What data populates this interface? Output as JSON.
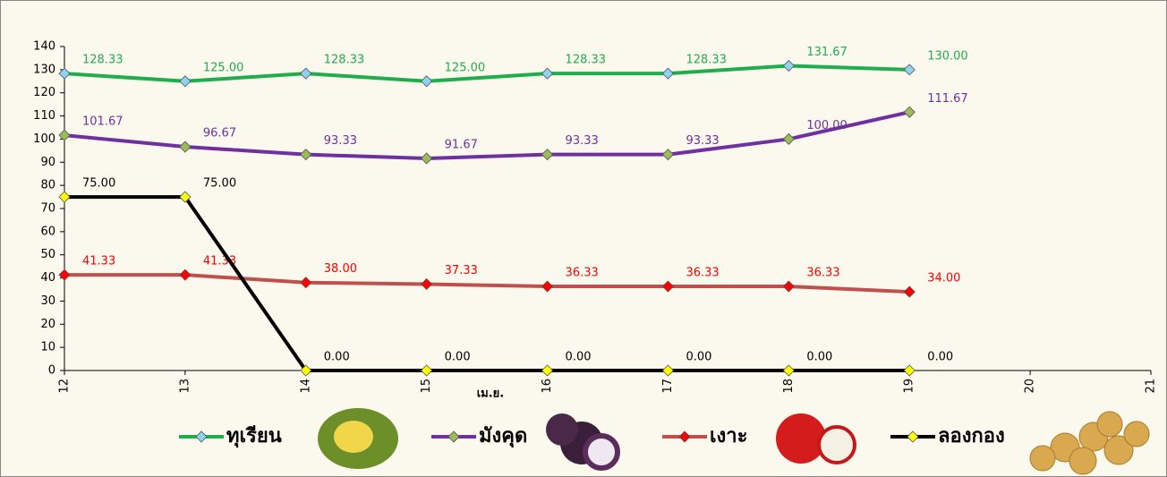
{
  "chart_data": {
    "type": "line",
    "x": [
      12,
      13,
      14,
      15,
      16,
      17,
      18,
      19
    ],
    "xlabel": "เม.ย.",
    "xlim": [
      12,
      21
    ],
    "xticks": [
      12,
      13,
      14,
      15,
      16,
      17,
      18,
      19,
      20,
      21
    ],
    "ylim": [
      0,
      140
    ],
    "yticks": [
      0,
      10,
      20,
      30,
      40,
      50,
      60,
      70,
      80,
      90,
      100,
      110,
      120,
      130,
      140
    ],
    "grid": false,
    "series": [
      {
        "name": "ทุเรียน",
        "color": "#1fae4b",
        "marker_color": "#8fd3f0",
        "label_color": "#1fae4b",
        "values": [
          128.33,
          125.0,
          128.33,
          125.0,
          128.33,
          128.33,
          131.67,
          130.0
        ],
        "value_labels": [
          "128.33",
          "125.00",
          "128.33",
          "125.00",
          "128.33",
          "128.33",
          "131.67",
          "130.00"
        ]
      },
      {
        "name": "มังคุด",
        "color": "#7030a0",
        "marker_color": "#9bbb59",
        "label_color": "#7030a0",
        "values": [
          101.67,
          96.67,
          93.33,
          91.67,
          93.33,
          93.33,
          100.0,
          111.67
        ],
        "value_labels": [
          "101.67",
          "96.67",
          "93.33",
          "91.67",
          "93.33",
          "93.33",
          "100.00",
          "111.67"
        ]
      },
      {
        "name": "เงาะ",
        "color": "#c0504d",
        "marker_color": "#ff0000",
        "label_color": "#ff0000",
        "values": [
          41.33,
          41.33,
          38.0,
          37.33,
          36.33,
          36.33,
          36.33,
          34.0
        ],
        "value_labels": [
          "41.33",
          "41.33",
          "38.00",
          "37.33",
          "36.33",
          "36.33",
          "36.33",
          "34.00"
        ]
      },
      {
        "name": "ลองกอง",
        "color": "#000000",
        "marker_color": "#ffff00",
        "label_color": "#000000",
        "values": [
          75.0,
          75.0,
          0.0,
          0.0,
          0.0,
          0.0,
          0.0,
          0.0
        ],
        "value_labels": [
          "75.00",
          "75.00",
          "0.00",
          "0.00",
          "0.00",
          "0.00",
          "0.00",
          "0.00"
        ]
      }
    ]
  }
}
